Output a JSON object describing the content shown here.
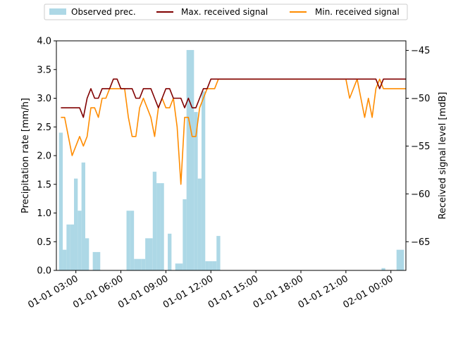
{
  "chart_data": {
    "type": "bar+line",
    "title": "",
    "legend": {
      "placement": "top-center",
      "entries": [
        "Observed prec.",
        "Max. received signal",
        "Min. received signal"
      ]
    },
    "left_axis": {
      "label": "Precipitation rate [mm/h]",
      "ylim": [
        0,
        4.0
      ],
      "ticks": [
        "0.0",
        "0.5",
        "1.0",
        "1.5",
        "2.0",
        "2.5",
        "3.0",
        "3.5",
        "4.0"
      ],
      "tick_values": [
        0,
        0.5,
        1.0,
        1.5,
        2.0,
        2.5,
        3.0,
        3.5,
        4.0
      ]
    },
    "right_axis": {
      "label": "Received signal level [mdB]",
      "ylim": [
        -68,
        -44
      ],
      "ticks": [
        "−65",
        "−60",
        "−55",
        "−50",
        "−45"
      ],
      "tick_values": [
        -65,
        -60,
        -55,
        -50,
        -45
      ]
    },
    "x_axis": {
      "unit": "hours since 01-01 00:00",
      "xlim": [
        1.7,
        25.0
      ],
      "ticks": [
        "01-01 03:00",
        "01-01 06:00",
        "01-01 09:00",
        "01-01 12:00",
        "01-01 15:00",
        "01-01 18:00",
        "01-01 21:00",
        "02-01 00:00"
      ],
      "tick_values": [
        3,
        6,
        9,
        12,
        15,
        18,
        21,
        24
      ]
    },
    "colors": {
      "bars": "#add8e6",
      "max_line": "#800000",
      "min_line": "#ff8c00"
    },
    "bar_width_hours": 0.25,
    "series": [
      {
        "name": "Observed prec.",
        "kind": "bar",
        "x": [
          2.0,
          2.25,
          2.5,
          2.75,
          3.0,
          3.25,
          3.5,
          3.75,
          4.25,
          4.5,
          6.5,
          6.75,
          7.0,
          7.25,
          7.5,
          7.75,
          8.0,
          8.25,
          8.5,
          8.75,
          9.25,
          9.75,
          10.0,
          10.25,
          10.5,
          10.75,
          11.0,
          11.25,
          11.5,
          11.75,
          12.0,
          12.25,
          12.5,
          23.5,
          24.5,
          24.75
        ],
        "values": [
          2.4,
          0.36,
          0.8,
          0.8,
          1.6,
          1.04,
          1.88,
          0.56,
          0.32,
          0.32,
          1.04,
          1.04,
          0.2,
          0.2,
          0.2,
          0.56,
          0.56,
          1.72,
          1.52,
          1.52,
          0.64,
          0.12,
          0.12,
          1.24,
          3.84,
          3.84,
          2.76,
          1.6,
          3.12,
          0.16,
          0.16,
          0.16,
          0.6,
          0.04,
          0.36,
          0.36
        ]
      },
      {
        "name": "Max. received signal",
        "kind": "line",
        "axis": "right",
        "x": [
          2.0,
          2.25,
          2.5,
          2.75,
          3.0,
          3.25,
          3.5,
          3.75,
          4.0,
          4.25,
          4.5,
          4.75,
          5.0,
          5.25,
          5.5,
          5.75,
          6.0,
          6.25,
          6.5,
          6.75,
          7.0,
          7.25,
          7.5,
          7.75,
          8.0,
          8.25,
          8.5,
          8.75,
          9.0,
          9.25,
          9.5,
          9.75,
          10.0,
          10.25,
          10.5,
          10.75,
          11.0,
          11.25,
          11.5,
          11.75,
          12.0,
          12.25,
          12.5,
          21.0,
          21.25,
          21.5,
          21.75,
          22.0,
          22.25,
          22.5,
          22.75,
          23.0,
          23.25,
          23.5,
          23.75,
          24.0,
          24.25,
          24.5,
          24.75,
          25.0
        ],
        "values": [
          -51,
          -51,
          -51,
          -51,
          -51,
          -51,
          -52,
          -50,
          -49,
          -50,
          -50,
          -49,
          -49,
          -49,
          -48,
          -48,
          -49,
          -49,
          -49,
          -49,
          -50,
          -50,
          -49,
          -49,
          -49,
          -50,
          -51,
          -50,
          -49,
          -49,
          -50,
          -50,
          -50,
          -51,
          -50,
          -51,
          -51,
          -50,
          -49,
          -49,
          -48,
          -48,
          -48,
          -48,
          -48,
          -48,
          -48,
          -48,
          -48,
          -48,
          -48,
          -48,
          -49,
          -48,
          -48,
          -48,
          -48,
          -48,
          -48,
          -48
        ]
      },
      {
        "name": "Min. received signal",
        "kind": "line",
        "axis": "right",
        "x": [
          2.0,
          2.25,
          2.5,
          2.75,
          3.0,
          3.25,
          3.5,
          3.75,
          4.0,
          4.25,
          4.5,
          4.75,
          5.0,
          5.25,
          5.5,
          5.75,
          6.0,
          6.25,
          6.5,
          6.75,
          7.0,
          7.25,
          7.5,
          7.75,
          8.0,
          8.25,
          8.5,
          8.75,
          9.0,
          9.25,
          9.5,
          9.75,
          10.0,
          10.25,
          10.5,
          10.75,
          11.0,
          11.25,
          11.5,
          11.75,
          12.0,
          12.25,
          12.5,
          21.0,
          21.25,
          21.5,
          21.75,
          22.0,
          22.25,
          22.5,
          22.75,
          23.0,
          23.25,
          23.5,
          23.75,
          24.0,
          24.25,
          24.5,
          24.75,
          25.0
        ],
        "values": [
          -52,
          -52,
          -54,
          -56,
          -55,
          -54,
          -55,
          -54,
          -51,
          -51,
          -52,
          -50,
          -50,
          -49,
          -49,
          -49,
          -49,
          -49,
          -52,
          -54,
          -54,
          -51,
          -50,
          -51,
          -52,
          -54,
          -51,
          -50,
          -51,
          -51,
          -50,
          -53,
          -59,
          -52,
          -52,
          -54,
          -54,
          -51,
          -50,
          -49,
          -49,
          -49,
          -48,
          -48,
          -50,
          -49,
          -48,
          -50,
          -52,
          -50,
          -52,
          -49,
          -48,
          -49,
          -49,
          -49,
          -49,
          -49,
          -49,
          -49
        ]
      }
    ]
  }
}
